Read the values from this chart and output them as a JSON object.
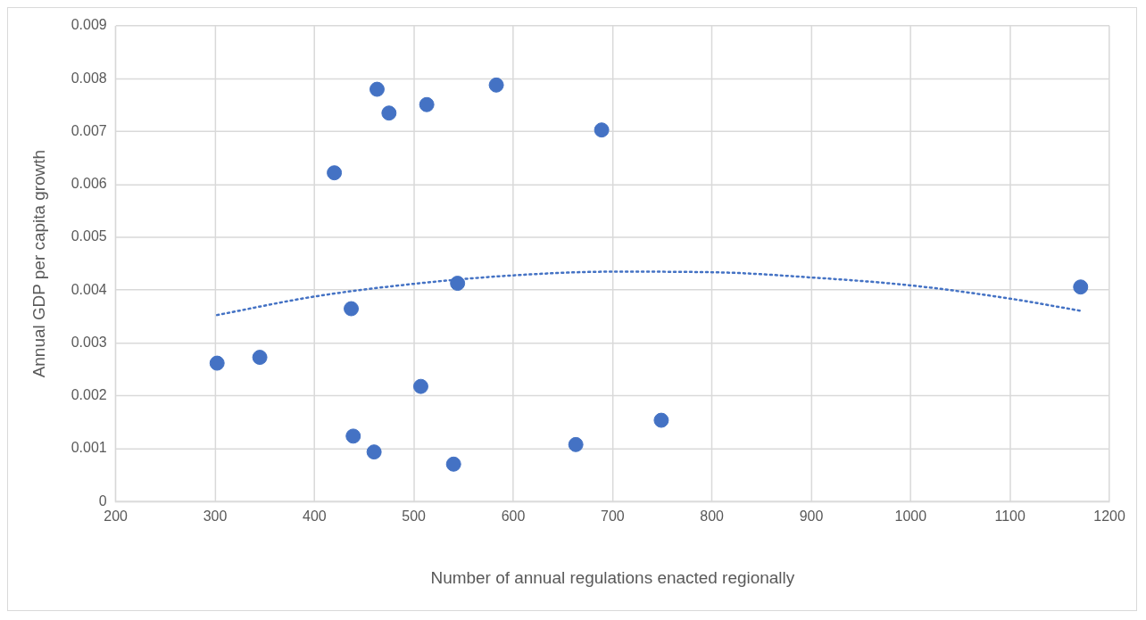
{
  "chart_data": {
    "type": "scatter",
    "xlabel": "Number of annual regulations enacted regionally",
    "ylabel": "Annual GDP per capita growth",
    "xlim": [
      200,
      1200
    ],
    "xticks": [
      200,
      300,
      400,
      500,
      600,
      700,
      800,
      900,
      1000,
      1100,
      1200
    ],
    "ylim": [
      0,
      0.009
    ],
    "yticks": [
      0,
      0.001,
      0.002,
      0.003,
      0.004,
      0.005,
      0.006,
      0.007,
      0.008,
      0.009
    ],
    "grid": true,
    "legend": false,
    "series": [
      {
        "color": "#4472c4",
        "marker": "circle",
        "x": [
          302,
          345,
          420,
          437,
          439,
          460,
          463,
          475,
          507,
          513,
          540,
          544,
          583,
          663,
          689,
          749,
          1171
        ],
        "values": [
          0.00262,
          0.00273,
          0.00622,
          0.00365,
          0.00124,
          0.00094,
          0.0078,
          0.00735,
          0.00218,
          0.00751,
          0.00071,
          0.00413,
          0.00788,
          0.00108,
          0.00703,
          0.00154,
          0.00406
        ]
      },
      {
        "type": "line",
        "color": "#4472c4",
        "marker": "none",
        "line_style": "dotted",
        "x": [
          302,
          400,
          500,
          600,
          700,
          800,
          900,
          1000,
          1100,
          1171
        ],
        "values": [
          0.00353,
          0.00388,
          0.00412,
          0.00428,
          0.00435,
          0.00434,
          0.00424,
          0.00409,
          0.00384,
          0.00361
        ]
      }
    ]
  }
}
